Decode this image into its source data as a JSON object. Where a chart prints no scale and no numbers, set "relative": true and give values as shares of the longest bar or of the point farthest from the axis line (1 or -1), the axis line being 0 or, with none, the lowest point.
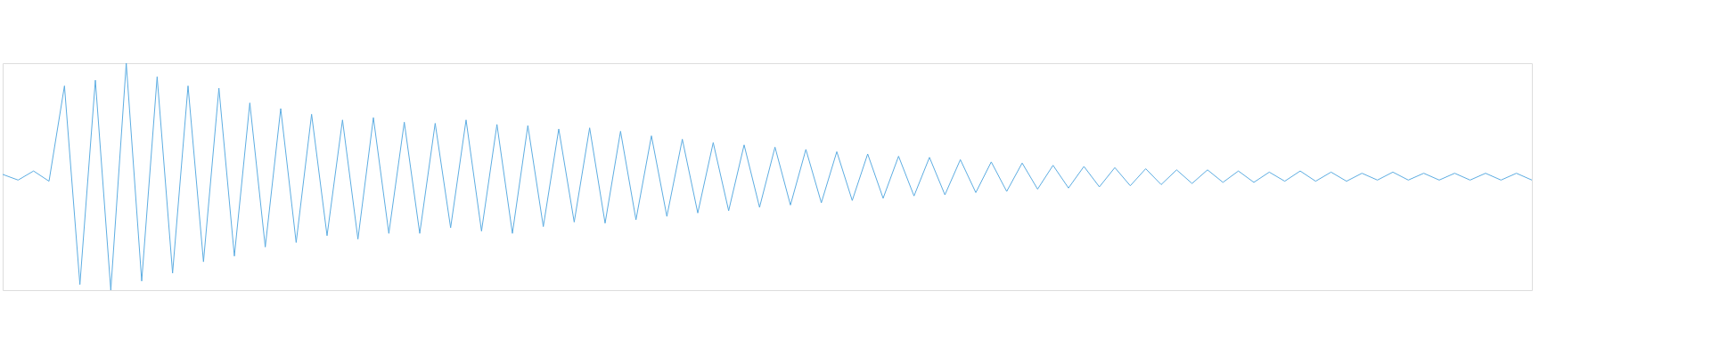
{
  "chart_data": {
    "type": "line",
    "relative": true,
    "color": "#5dade2",
    "categories": [
      null,
      null,
      null,
      null,
      null,
      null,
      null,
      null,
      null,
      null,
      null,
      null,
      null,
      null,
      null,
      null,
      null,
      null,
      null,
      null,
      null,
      null,
      null,
      null,
      null,
      null,
      null,
      null,
      null,
      null,
      null,
      null,
      null,
      null,
      null,
      null,
      null,
      null,
      null,
      null,
      null,
      null,
      null,
      null,
      null,
      null,
      null,
      null,
      null,
      null,
      null,
      null,
      null,
      null,
      null,
      null,
      null,
      null,
      null,
      null,
      null,
      null,
      null,
      null,
      null,
      null,
      null,
      null,
      null,
      null,
      null,
      null,
      null,
      null,
      null,
      null,
      null,
      null,
      null,
      null,
      null,
      null,
      null,
      null,
      null,
      null,
      null,
      null,
      null,
      null,
      null,
      null,
      null,
      null,
      null,
      null,
      null,
      null,
      null,
      null
    ],
    "values": [
      0.51,
      0.485,
      0.525,
      0.48,
      0.9,
      0.025,
      0.925,
      0,
      1,
      0.04,
      0.94,
      0.075,
      0.9,
      0.125,
      0.89,
      0.15,
      0.825,
      0.19,
      0.8,
      0.21,
      0.775,
      0.24,
      0.75,
      0.225,
      0.76,
      0.25,
      0.74,
      0.25,
      0.735,
      0.275,
      0.75,
      0.26,
      0.73,
      0.25,
      0.725,
      0.28,
      0.71,
      0.3,
      0.715,
      0.295,
      0.7,
      0.31,
      0.68,
      0.325,
      0.665,
      0.34,
      0.65,
      0.35,
      0.64,
      0.365,
      0.63,
      0.375,
      0.62,
      0.385,
      0.61,
      0.395,
      0.6,
      0.405,
      0.59,
      0.415,
      0.585,
      0.42,
      0.575,
      0.43,
      0.565,
      0.435,
      0.56,
      0.445,
      0.55,
      0.45,
      0.545,
      0.455,
      0.54,
      0.46,
      0.535,
      0.465,
      0.53,
      0.47,
      0.53,
      0.475,
      0.525,
      0.475,
      0.52,
      0.48,
      0.525,
      0.48,
      0.52,
      0.48,
      0.515,
      0.485,
      0.52,
      0.485,
      0.515,
      0.485,
      0.515,
      0.485,
      0.515,
      0.485,
      0.515,
      0.485
    ]
  }
}
